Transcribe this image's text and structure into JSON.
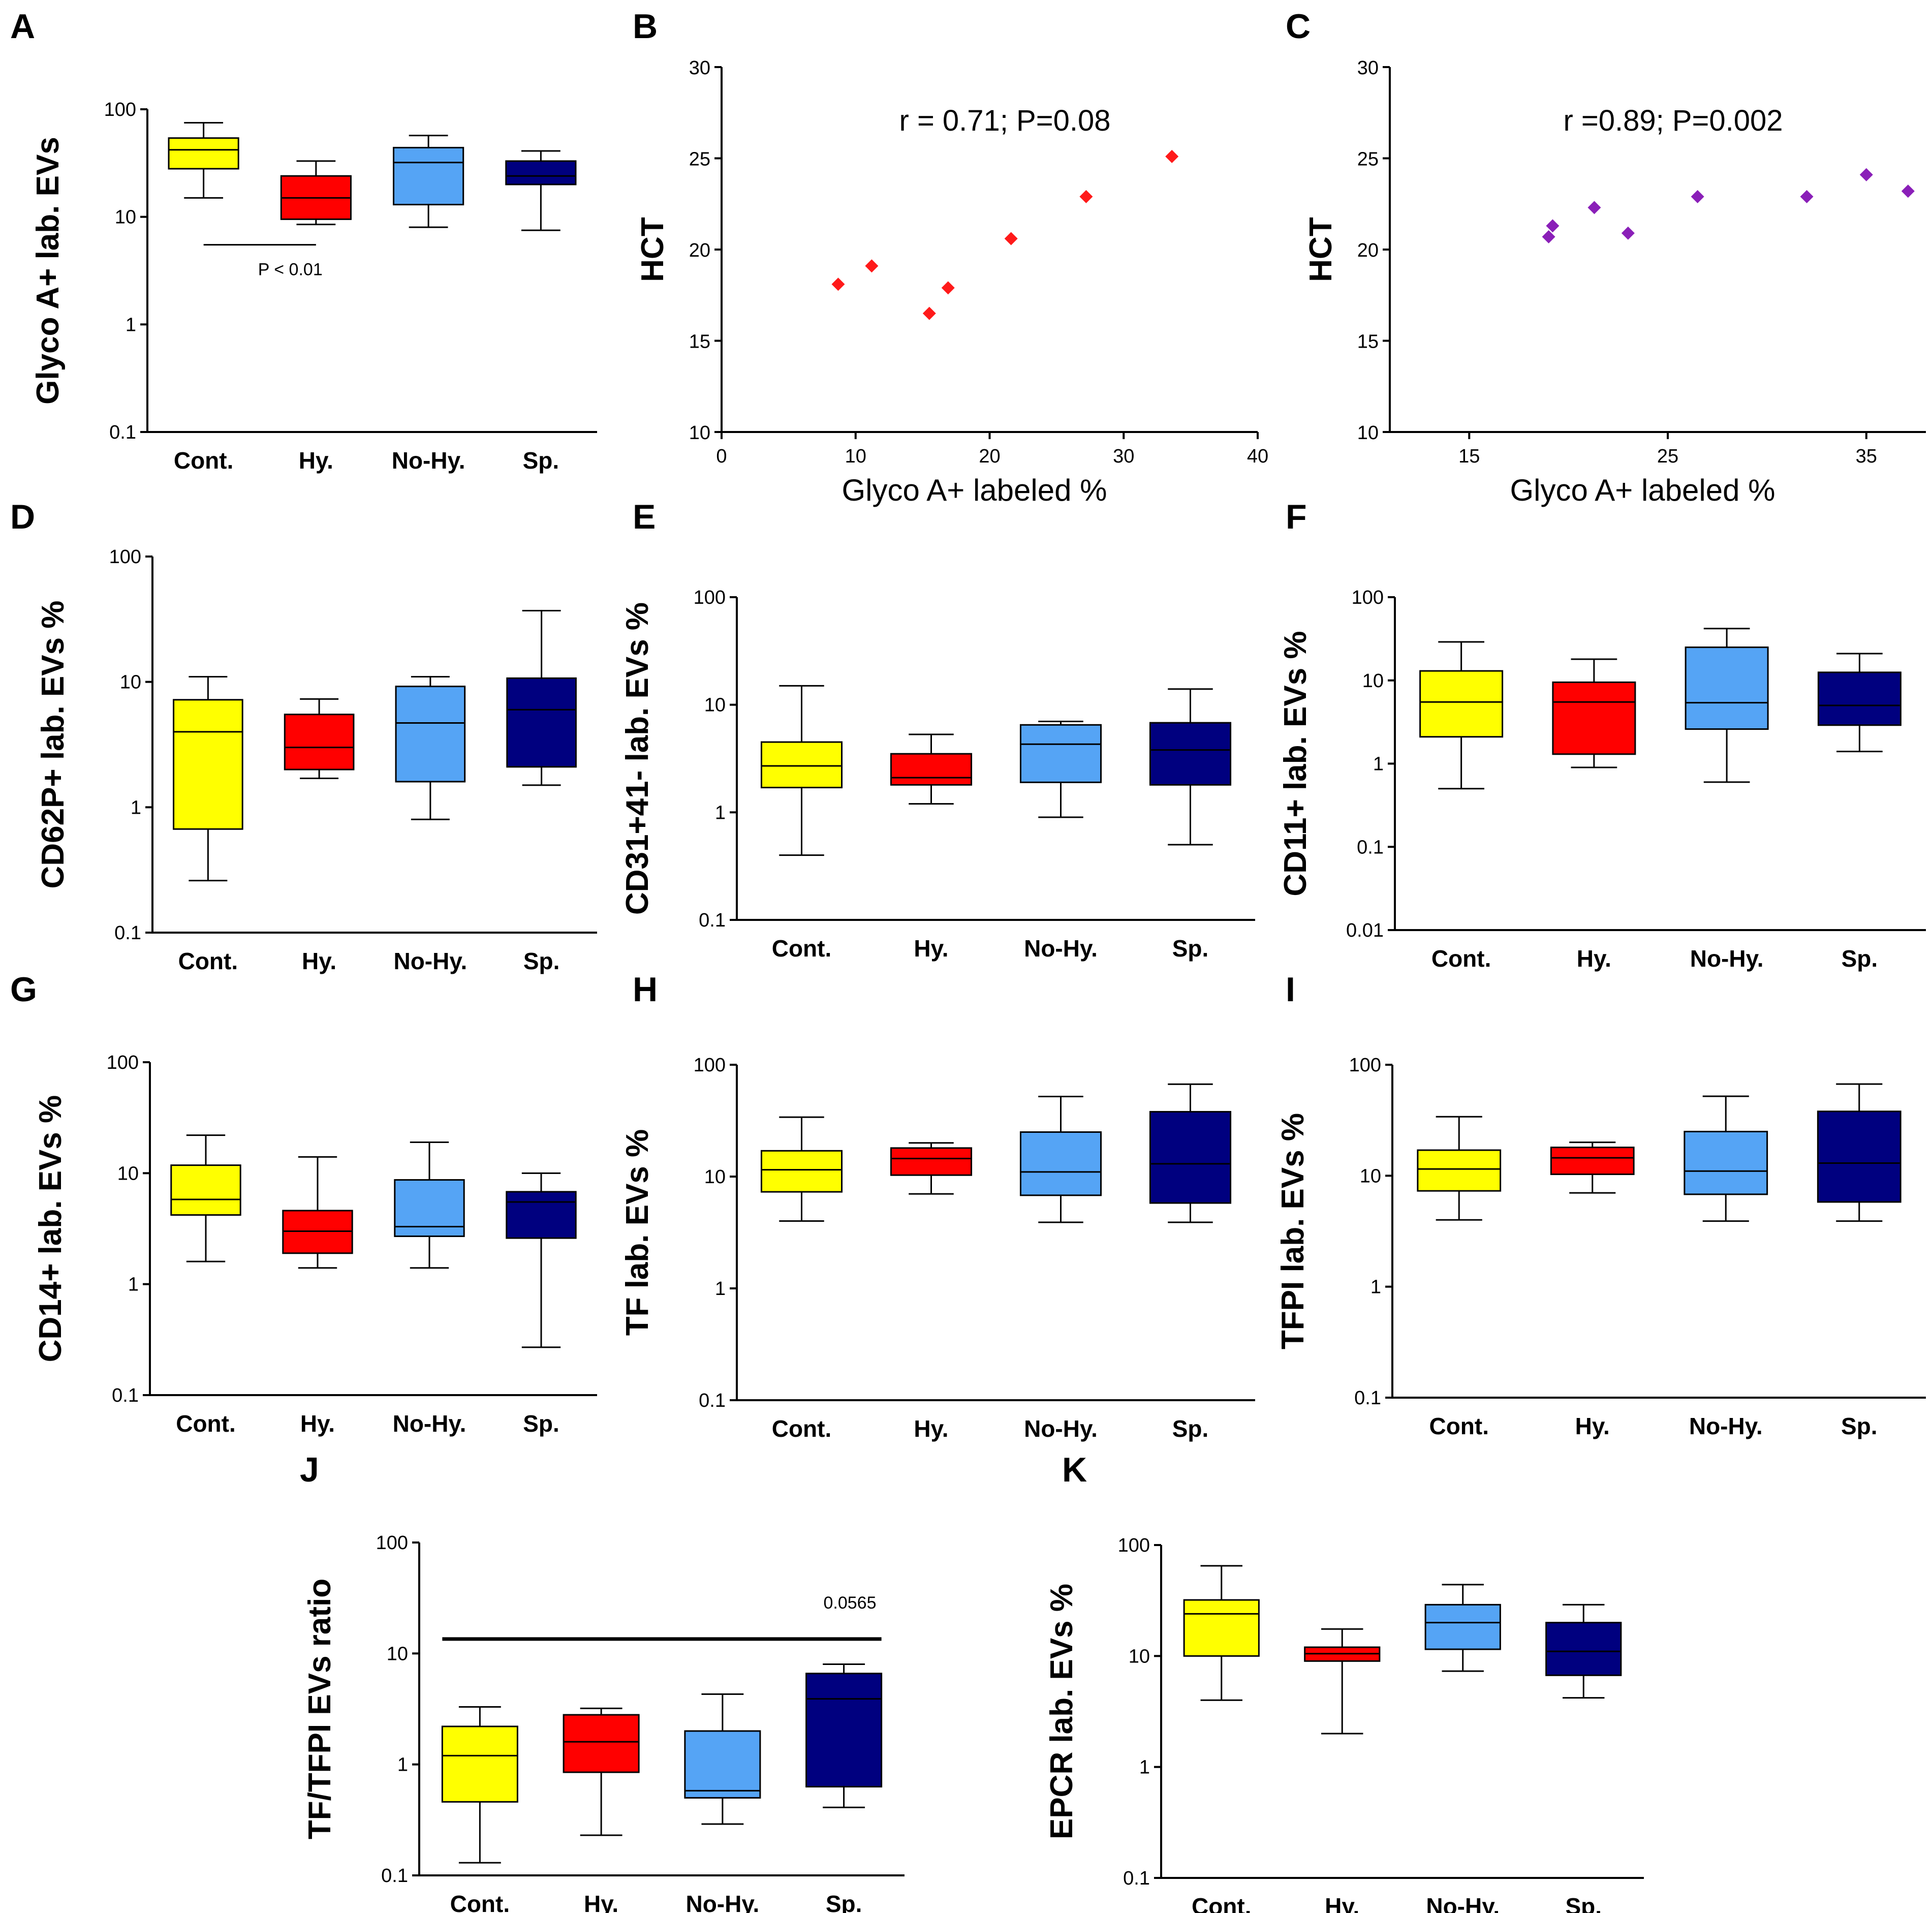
{
  "chart_data": [
    {
      "id": "A",
      "panel_label": "A",
      "type": "box",
      "scale": "log",
      "ylabel": "Glyco A+ lab. EVs",
      "ylabel_sup": "+",
      "ylim": [
        0.1,
        100
      ],
      "yticks": [
        "0.1",
        "1",
        "10",
        "100"
      ],
      "categories": [
        "Cont.",
        "Hy.",
        "No-Hy.",
        "Sp."
      ],
      "colors": [
        "#ffff00",
        "#ff0000",
        "#55a4f5",
        "#00007f"
      ],
      "boxes": [
        {
          "min": 15,
          "q1": 28,
          "median": 42,
          "q3": 54,
          "max": 75
        },
        {
          "min": 8.5,
          "q1": 9.5,
          "median": 15,
          "q3": 24,
          "max": 33
        },
        {
          "min": 8,
          "q1": 13,
          "median": 32,
          "q3": 44,
          "max": 57
        },
        {
          "min": 7.5,
          "q1": 20,
          "median": 24,
          "q3": 33,
          "max": 41
        }
      ],
      "annotation": {
        "text": "P < 0.01",
        "from": 0,
        "to": 1,
        "y": 5.5
      }
    },
    {
      "id": "B",
      "panel_label": "B",
      "type": "scatter",
      "xlabel": "Glyco A+  labeled %",
      "ylabel": "HCT",
      "xlim": [
        0,
        40
      ],
      "ylim": [
        10,
        30
      ],
      "xticks": [
        0,
        10,
        20,
        30,
        40
      ],
      "yticks": [
        10,
        15,
        20,
        25,
        30
      ],
      "marker_color": "#ff1a1a",
      "points": [
        [
          8.7,
          18.1
        ],
        [
          11.2,
          19.1
        ],
        [
          15.5,
          16.5
        ],
        [
          16.9,
          17.9
        ],
        [
          21.6,
          20.6
        ],
        [
          27.2,
          22.9
        ],
        [
          33.6,
          25.1
        ]
      ],
      "annotation": "r = 0.71; P=0.08"
    },
    {
      "id": "C",
      "panel_label": "C",
      "type": "scatter",
      "xlabel": "Glyco A+  labeled %",
      "ylabel": "HCT",
      "xlim": [
        11,
        38
      ],
      "ylim": [
        10,
        30
      ],
      "xticks": [
        15,
        25,
        35
      ],
      "yticks": [
        10,
        15,
        20,
        25,
        30
      ],
      "marker_color": "#8a1fb8",
      "points": [
        [
          19.0,
          20.7
        ],
        [
          19.2,
          21.3
        ],
        [
          21.3,
          22.3
        ],
        [
          23.0,
          20.9
        ],
        [
          26.5,
          22.9
        ],
        [
          32.0,
          22.9
        ],
        [
          35.0,
          24.1
        ],
        [
          37.1,
          23.2
        ]
      ],
      "annotation": "r =0.89; P=0.002"
    },
    {
      "id": "D",
      "panel_label": "D",
      "type": "box",
      "scale": "log",
      "ylabel": "CD62P+ lab. EVs %",
      "ylabel_sup": "+",
      "ylim": [
        0.1,
        100
      ],
      "yticks": [
        "0.1",
        "1",
        "10",
        "100"
      ],
      "categories": [
        "Cont.",
        "Hy.",
        "No-Hy.",
        "Sp."
      ],
      "colors": [
        "#ffff00",
        "#ff0000",
        "#55a4f5",
        "#00007f"
      ],
      "boxes": [
        {
          "min": 0.26,
          "q1": 0.67,
          "median": 4,
          "q3": 7.2,
          "max": 11
        },
        {
          "min": 1.7,
          "q1": 2,
          "median": 3,
          "q3": 5.5,
          "max": 7.3
        },
        {
          "min": 0.8,
          "q1": 1.6,
          "median": 4.7,
          "q3": 9.2,
          "max": 11
        },
        {
          "min": 1.5,
          "q1": 2.1,
          "median": 6,
          "q3": 10.7,
          "max": 37
        }
      ]
    },
    {
      "id": "E",
      "panel_label": "E",
      "type": "box",
      "scale": "log",
      "ylabel": "CD31+41- lab.  EVs %",
      "ylabel_sup": "+ -",
      "ylim": [
        0.1,
        100
      ],
      "yticks": [
        "0.1",
        "1",
        "10",
        "100"
      ],
      "categories": [
        "Cont.",
        "Hy.",
        "No-Hy.",
        "Sp."
      ],
      "colors": [
        "#ffff00",
        "#ff0000",
        "#55a4f5",
        "#00007f"
      ],
      "boxes": [
        {
          "min": 0.4,
          "q1": 1.7,
          "median": 2.7,
          "q3": 4.5,
          "max": 15
        },
        {
          "min": 1.2,
          "q1": 1.8,
          "median": 2.1,
          "q3": 3.5,
          "max": 5.3
        },
        {
          "min": 0.9,
          "q1": 1.9,
          "median": 4.3,
          "q3": 6.5,
          "max": 7
        },
        {
          "min": 0.5,
          "q1": 1.8,
          "median": 3.8,
          "q3": 6.8,
          "max": 14
        }
      ]
    },
    {
      "id": "F",
      "panel_label": "F",
      "type": "box",
      "scale": "log",
      "ylabel": "CD11+ lab. EVs %",
      "ylabel_sup": "+",
      "ylim": [
        0.01,
        100
      ],
      "yticks": [
        "0.01",
        "0.1",
        "1",
        "10",
        "100"
      ],
      "categories": [
        "Cont.",
        "Hy.",
        "No-Hy.",
        "Sp."
      ],
      "colors": [
        "#ffff00",
        "#ff0000",
        "#55a4f5",
        "#00007f"
      ],
      "boxes": [
        {
          "min": 0.5,
          "q1": 2.1,
          "median": 5.5,
          "q3": 13,
          "max": 29
        },
        {
          "min": 0.9,
          "q1": 1.3,
          "median": 5.5,
          "q3": 9.5,
          "max": 18
        },
        {
          "min": 0.6,
          "q1": 2.6,
          "median": 5.4,
          "q3": 25,
          "max": 42
        },
        {
          "min": 1.4,
          "q1": 2.9,
          "median": 5,
          "q3": 12.5,
          "max": 21
        }
      ]
    },
    {
      "id": "G",
      "panel_label": "G",
      "type": "box",
      "scale": "log",
      "ylabel": "CD14+ lab. EVs %",
      "ylabel_sup": "+",
      "ylim": [
        0.1,
        100
      ],
      "yticks": [
        "0.1",
        "1",
        "10",
        "100"
      ],
      "categories": [
        "Cont.",
        "Hy.",
        "No-Hy.",
        "Sp."
      ],
      "colors": [
        "#ffff00",
        "#ff0000",
        "#55a4f5",
        "#00007f"
      ],
      "boxes": [
        {
          "min": 1.6,
          "q1": 4.2,
          "median": 5.8,
          "q3": 11.8,
          "max": 22
        },
        {
          "min": 1.4,
          "q1": 1.9,
          "median": 3,
          "q3": 4.6,
          "max": 14
        },
        {
          "min": 1.4,
          "q1": 2.7,
          "median": 3.3,
          "q3": 8.7,
          "max": 19
        },
        {
          "min": 0.27,
          "q1": 2.6,
          "median": 5.5,
          "q3": 6.8,
          "max": 10
        }
      ]
    },
    {
      "id": "H",
      "panel_label": "H",
      "type": "box",
      "scale": "log",
      "ylabel": "TF lab. EVs %",
      "ylim": [
        0.1,
        100
      ],
      "yticks": [
        "0.1",
        "1",
        "10",
        "100"
      ],
      "categories": [
        "Cont.",
        "Hy.",
        "No-Hy.",
        "Sp."
      ],
      "colors": [
        "#ffff00",
        "#ff0000",
        "#55a4f5",
        "#00007f"
      ],
      "boxes": [
        {
          "min": 4,
          "q1": 7.3,
          "median": 11.5,
          "q3": 17,
          "max": 34
        },
        {
          "min": 7,
          "q1": 10.3,
          "median": 14.5,
          "q3": 18,
          "max": 20
        },
        {
          "min": 3.9,
          "q1": 6.8,
          "median": 11,
          "q3": 25,
          "max": 52
        },
        {
          "min": 3.9,
          "q1": 5.8,
          "median": 13,
          "q3": 38,
          "max": 67
        }
      ]
    },
    {
      "id": "I",
      "panel_label": "I",
      "type": "box",
      "scale": "log",
      "ylabel": "TFPI lab. EVs %",
      "ylim": [
        0.1,
        100
      ],
      "yticks": [
        "0.1",
        "1",
        "10",
        "100"
      ],
      "categories": [
        "Cont.",
        "Hy.",
        "No-Hy.",
        "Sp."
      ],
      "colors": [
        "#ffff00",
        "#ff0000",
        "#55a4f5",
        "#00007f"
      ],
      "boxes": [
        {
          "min": 4,
          "q1": 7.3,
          "median": 11.5,
          "q3": 17,
          "max": 34
        },
        {
          "min": 7,
          "q1": 10.3,
          "median": 14.5,
          "q3": 18,
          "max": 20
        },
        {
          "min": 3.9,
          "q1": 6.8,
          "median": 11,
          "q3": 25,
          "max": 52
        },
        {
          "min": 3.9,
          "q1": 5.8,
          "median": 13,
          "q3": 38,
          "max": 67
        }
      ]
    },
    {
      "id": "J",
      "panel_label": "J",
      "type": "box",
      "scale": "log",
      "ylabel": "TF/TFPI EVs ratio",
      "ylim": [
        0.1,
        100
      ],
      "yticks": [
        "0.1",
        "1",
        "10",
        "100"
      ],
      "categories": [
        "Cont.",
        "Hy.",
        "No-Hy.",
        "Sp."
      ],
      "colors": [
        "#ffff00",
        "#ff0000",
        "#55a4f5",
        "#00007f"
      ],
      "boxes": [
        {
          "min": 0.13,
          "q1": 0.46,
          "median": 1.2,
          "q3": 2.2,
          "max": 3.3
        },
        {
          "min": 0.23,
          "q1": 0.85,
          "median": 1.6,
          "q3": 2.8,
          "max": 3.2
        },
        {
          "min": 0.29,
          "q1": 0.5,
          "median": 0.58,
          "q3": 2,
          "max": 4.3
        },
        {
          "min": 0.41,
          "q1": 0.63,
          "median": 3.9,
          "q3": 6.6,
          "max": 8
        }
      ],
      "annotation": {
        "text": "0.0565",
        "from": 0,
        "to": 3,
        "y": 13.5
      }
    },
    {
      "id": "K",
      "panel_label": "K",
      "type": "box",
      "scale": "log",
      "ylabel": "EPCR lab. EVs %",
      "ylim": [
        0.1,
        100
      ],
      "yticks": [
        "0.1",
        "1",
        "10",
        "100"
      ],
      "categories": [
        "Cont.",
        "Hy.",
        "No-Hy.",
        "Sp."
      ],
      "colors": [
        "#ffff00",
        "#ff0000",
        "#55a4f5",
        "#00007f"
      ],
      "boxes": [
        {
          "min": 4,
          "q1": 10,
          "median": 24,
          "q3": 32,
          "max": 65
        },
        {
          "min": 2,
          "q1": 9,
          "median": 10.5,
          "q3": 12,
          "max": 17.5
        },
        {
          "min": 7.3,
          "q1": 11.5,
          "median": 20,
          "q3": 29,
          "max": 44
        },
        {
          "min": 4.2,
          "q1": 6.7,
          "median": 11,
          "q3": 20,
          "max": 29
        }
      ]
    }
  ]
}
